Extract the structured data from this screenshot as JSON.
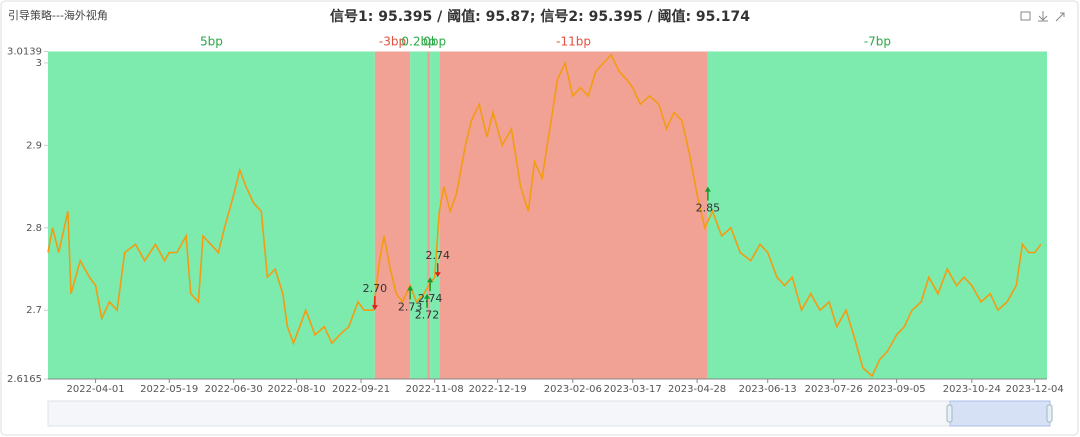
{
  "chart_data": {
    "type": "line",
    "header": "引导策略---海外视角",
    "title": "信号1: 95.395 / 阈值: 95.87; 信号2: 95.395 / 阈值: 95.174",
    "color": "#f39c12",
    "x": [
      "2022-03-01",
      "2022-03-04",
      "2022-03-08",
      "2022-03-14",
      "2022-03-16",
      "2022-03-22",
      "2022-03-28",
      "2022-04-01",
      "2022-04-05",
      "2022-04-10",
      "2022-04-15",
      "2022-04-20",
      "2022-04-27",
      "2022-05-03",
      "2022-05-10",
      "2022-05-16",
      "2022-05-19",
      "2022-05-24",
      "2022-05-30",
      "2022-06-02",
      "2022-06-07",
      "2022-06-10",
      "2022-06-15",
      "2022-06-20",
      "2022-06-24",
      "2022-06-30",
      "2022-07-04",
      "2022-07-08",
      "2022-07-13",
      "2022-07-18",
      "2022-07-22",
      "2022-07-27",
      "2022-08-01",
      "2022-08-04",
      "2022-08-08",
      "2022-08-12",
      "2022-08-16",
      "2022-08-22",
      "2022-08-28",
      "2022-09-02",
      "2022-09-07",
      "2022-09-13",
      "2022-09-19",
      "2022-09-23",
      "2022-09-29",
      "2022-10-03",
      "2022-10-06",
      "2022-10-10",
      "2022-10-14",
      "2022-10-18",
      "2022-10-23",
      "2022-10-27",
      "2022-11-01",
      "2022-11-04",
      "2022-11-08",
      "2022-11-11",
      "2022-11-14",
      "2022-11-18",
      "2022-11-22",
      "2022-11-28",
      "2022-12-02",
      "2022-12-07",
      "2022-12-12",
      "2022-12-16",
      "2022-12-22",
      "2022-12-28",
      "2023-01-03",
      "2023-01-08",
      "2023-01-12",
      "2023-01-17",
      "2023-01-22",
      "2023-01-27",
      "2023-02-01",
      "2023-02-06",
      "2023-02-11",
      "2023-02-16",
      "2023-02-21",
      "2023-02-26",
      "2023-03-03",
      "2023-03-08",
      "2023-03-13",
      "2023-03-17",
      "2023-03-22",
      "2023-03-28",
      "2023-04-03",
      "2023-04-08",
      "2023-04-13",
      "2023-04-18",
      "2023-04-23",
      "2023-04-28",
      "2023-05-03",
      "2023-05-08",
      "2023-05-14",
      "2023-05-20",
      "2023-05-26",
      "2023-06-02",
      "2023-06-08",
      "2023-06-13",
      "2023-06-19",
      "2023-06-24",
      "2023-06-29",
      "2023-07-05",
      "2023-07-11",
      "2023-07-17",
      "2023-07-23",
      "2023-07-28",
      "2023-08-03",
      "2023-08-08",
      "2023-08-14",
      "2023-08-20",
      "2023-08-25",
      "2023-08-30",
      "2023-09-05",
      "2023-09-10",
      "2023-09-15",
      "2023-09-21",
      "2023-09-26",
      "2023-10-02",
      "2023-10-08",
      "2023-10-14",
      "2023-10-19",
      "2023-10-24",
      "2023-10-30",
      "2023-11-05",
      "2023-11-10",
      "2023-11-16",
      "2023-11-22",
      "2023-11-26",
      "2023-11-30",
      "2023-12-04",
      "2023-12-08"
    ],
    "values": [
      2.77,
      2.8,
      2.77,
      2.82,
      2.72,
      2.76,
      2.74,
      2.73,
      2.69,
      2.71,
      2.7,
      2.77,
      2.78,
      2.76,
      2.78,
      2.76,
      2.77,
      2.77,
      2.79,
      2.72,
      2.71,
      2.79,
      2.78,
      2.77,
      2.8,
      2.84,
      2.87,
      2.85,
      2.83,
      2.82,
      2.74,
      2.75,
      2.72,
      2.68,
      2.66,
      2.68,
      2.7,
      2.67,
      2.68,
      2.66,
      2.67,
      2.68,
      2.71,
      2.7,
      2.7,
      2.76,
      2.79,
      2.75,
      2.72,
      2.71,
      2.73,
      2.71,
      2.72,
      2.73,
      2.74,
      2.82,
      2.85,
      2.82,
      2.84,
      2.9,
      2.93,
      2.95,
      2.91,
      2.94,
      2.9,
      2.92,
      2.85,
      2.82,
      2.88,
      2.86,
      2.92,
      2.98,
      3.0,
      2.96,
      2.97,
      2.96,
      2.99,
      3.0,
      3.01,
      2.99,
      2.98,
      2.97,
      2.95,
      2.96,
      2.95,
      2.92,
      2.94,
      2.93,
      2.89,
      2.84,
      2.8,
      2.82,
      2.79,
      2.8,
      2.77,
      2.76,
      2.78,
      2.77,
      2.74,
      2.73,
      2.74,
      2.7,
      2.72,
      2.7,
      2.71,
      2.68,
      2.7,
      2.67,
      2.63,
      2.62,
      2.64,
      2.65,
      2.67,
      2.68,
      2.7,
      2.71,
      2.74,
      2.72,
      2.75,
      2.73,
      2.74,
      2.73,
      2.71,
      2.72,
      2.7,
      2.71,
      2.73,
      2.78,
      2.77,
      2.77,
      2.78
    ],
    "xlim": [
      "2022-03-01",
      "2023-12-12"
    ],
    "xticks": [
      "2022-04-01",
      "2022-05-19",
      "2022-06-30",
      "2022-08-10",
      "2022-09-21",
      "2022-11-08",
      "2022-12-19",
      "2023-02-06",
      "2023-03-17",
      "2023-04-28",
      "2023-06-13",
      "2023-07-26",
      "2023-09-05",
      "2023-10-24",
      "2023-12-04"
    ],
    "ylim": [
      2.6165,
      3.0139
    ],
    "yticks": [
      2.6165,
      2.7,
      2.8,
      2.9,
      3,
      3.0139
    ],
    "regions": [
      {
        "start": "2022-03-01",
        "end": "2022-09-30",
        "label": "5bp",
        "color": "#7deaae",
        "label_color": "#2aa845"
      },
      {
        "start": "2022-09-30",
        "end": "2022-10-23",
        "label": "-3bp",
        "color": "#f1a294",
        "label_color": "#e0523f"
      },
      {
        "start": "2022-10-23",
        "end": "2022-11-03",
        "label": "0.2bp",
        "color": "#7deaae",
        "label_color": "#2aa845"
      },
      {
        "start": "2022-11-03",
        "end": "2022-11-05",
        "color": "#f1a294"
      },
      {
        "start": "2022-11-05",
        "end": "2022-11-11",
        "label": "0bp",
        "color": "#7deaae",
        "label_color": "#2aa845"
      },
      {
        "start": "2022-11-11",
        "end": "2023-05-05",
        "label": "-11bp",
        "color": "#f1a294",
        "label_color": "#e0523f"
      },
      {
        "start": "2023-05-05",
        "end": "2023-12-12",
        "label": "-7bp",
        "color": "#7deaae",
        "label_color": "#2aa845"
      }
    ],
    "signals": {
      "x": [
        "2022-09-30",
        "2022-10-23",
        "2022-11-03",
        "2022-11-05",
        "2022-11-10",
        "2023-05-05"
      ],
      "values": [
        2.7,
        2.73,
        2.72,
        2.74,
        2.74,
        2.85
      ],
      "value_labels": [
        "2.70",
        "2.73",
        "2.72",
        "2.74",
        "2.74",
        "2.85"
      ],
      "markers": [
        "arrow-down",
        "arrow-up",
        "arrow-up",
        "arrow-up",
        "arrow-down",
        "arrow-up"
      ],
      "colors": [
        "#d9241b",
        "#1a9a2a",
        "#1a9a2a",
        "#1a9a2a",
        "#d9241b",
        "#1a9a2a"
      ]
    }
  }
}
